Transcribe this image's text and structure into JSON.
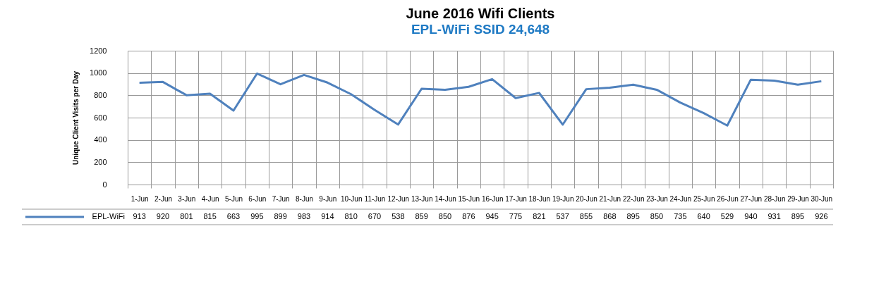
{
  "chart_data": {
    "type": "line",
    "title": "June 2016 Wifi Clients",
    "subtitle": "EPL-WiFi SSID  24,648",
    "ylabel": "Unique Client Visits per Day",
    "categories": [
      "1-Jun",
      "2-Jun",
      "3-Jun",
      "4-Jun",
      "5-Jun",
      "6-Jun",
      "7-Jun",
      "8-Jun",
      "9-Jun",
      "10-Jun",
      "11-Jun",
      "12-Jun",
      "13-Jun",
      "14-Jun",
      "15-Jun",
      "16-Jun",
      "17-Jun",
      "18-Jun",
      "19-Jun",
      "20-Jun",
      "21-Jun",
      "22-Jun",
      "23-Jun",
      "24-Jun",
      "25-Jun",
      "26-Jun",
      "27-Jun",
      "28-Jun",
      "29-Jun",
      "30-Jun"
    ],
    "series": [
      {
        "name": "EPL-WiFi",
        "color": "#4f81bd",
        "values": [
          913,
          920,
          801,
          815,
          663,
          995,
          899,
          983,
          914,
          810,
          670,
          538,
          859,
          850,
          876,
          945,
          775,
          821,
          537,
          855,
          868,
          895,
          850,
          735,
          640,
          529,
          940,
          931,
          895,
          926
        ]
      }
    ],
    "ylim": [
      0,
      1200
    ],
    "yticks": [
      0,
      200,
      400,
      600,
      800,
      {
        "value": 1000,
        "label": "1000"
      },
      {
        "value": 1200,
        "label": "1200"
      }
    ],
    "grid": true,
    "legend": "bottom",
    "data_labels": true,
    "marker": "none",
    "line_style": "solid"
  }
}
